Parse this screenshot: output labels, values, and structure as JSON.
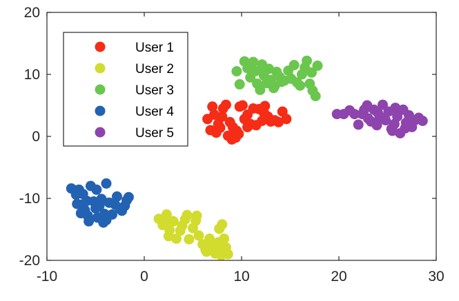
{
  "chart_data": {
    "type": "scatter",
    "title": "",
    "xlabel": "",
    "ylabel": "",
    "xlim": [
      -10,
      30
    ],
    "ylim": [
      -20,
      20
    ],
    "xticks": [
      -10,
      0,
      10,
      20,
      30
    ],
    "yticks": [
      -20,
      -10,
      0,
      10,
      20
    ],
    "xtick_labels": [
      "-10",
      "0",
      "10",
      "20",
      "30"
    ],
    "ytick_labels": [
      "-20",
      "-10",
      "0",
      "10",
      "20"
    ],
    "grid": false,
    "legend_position": "top-left",
    "series": [
      {
        "name": "User 1",
        "color": "#f52c16",
        "points": [
          [
            6.5,
            2.8
          ],
          [
            6.8,
            1.0
          ],
          [
            7.2,
            3.5
          ],
          [
            7.0,
            4.8
          ],
          [
            7.6,
            2.0
          ],
          [
            7.4,
            0.6
          ],
          [
            8.1,
            4.5
          ],
          [
            8.4,
            5.1
          ],
          [
            8.0,
            3.2
          ],
          [
            8.8,
            2.3
          ],
          [
            9.1,
            1.5
          ],
          [
            8.6,
            0.1
          ],
          [
            9.0,
            -0.5
          ],
          [
            9.4,
            -0.2
          ],
          [
            9.7,
            0.4
          ],
          [
            9.8,
            4.8
          ],
          [
            10.1,
            5.0
          ],
          [
            10.3,
            2.8
          ],
          [
            10.6,
            3.5
          ],
          [
            10.9,
            2.0
          ],
          [
            11.2,
            4.5
          ],
          [
            11.5,
            1.8
          ],
          [
            11.8,
            4.4
          ],
          [
            12.1,
            2.5
          ],
          [
            12.4,
            4.9
          ],
          [
            12.7,
            3.2
          ],
          [
            12.3,
            3.8
          ],
          [
            13.0,
            2.4
          ],
          [
            13.4,
            2.6
          ],
          [
            13.8,
            2.3
          ],
          [
            14.2,
            4.0
          ],
          [
            14.6,
            2.8
          ],
          [
            10.6,
            1.5
          ],
          [
            9.5,
            0.9
          ],
          [
            7.8,
            1.4
          ]
        ]
      },
      {
        "name": "User 2",
        "color": "#d1dc2e",
        "points": [
          [
            1.5,
            -13.3
          ],
          [
            1.9,
            -14.3
          ],
          [
            2.3,
            -12.6
          ],
          [
            2.6,
            -15.1
          ],
          [
            3.0,
            -13.7
          ],
          [
            2.5,
            -16.1
          ],
          [
            3.3,
            -16.5
          ],
          [
            3.9,
            -14.4
          ],
          [
            4.2,
            -13.4
          ],
          [
            4.6,
            -16.6
          ],
          [
            4.4,
            -12.7
          ],
          [
            5.0,
            -14.8
          ],
          [
            5.3,
            -13.6
          ],
          [
            5.6,
            -16.0
          ],
          [
            5.4,
            -12.8
          ],
          [
            6.0,
            -17.4
          ],
          [
            6.3,
            -18.3
          ],
          [
            6.7,
            -16.5
          ],
          [
            6.4,
            -18.6
          ],
          [
            7.0,
            -17.6
          ],
          [
            7.3,
            -18.9
          ],
          [
            7.6,
            -17.1
          ],
          [
            7.8,
            -18.6
          ],
          [
            8.0,
            -14.2
          ],
          [
            7.7,
            -14.9
          ],
          [
            8.2,
            -16.5
          ],
          [
            8.4,
            -17.9
          ],
          [
            8.6,
            -19.0
          ],
          [
            7.9,
            -19.2
          ],
          [
            6.9,
            -18.0
          ],
          [
            3.7,
            -15.2
          ],
          [
            2.1,
            -13.8
          ]
        ]
      },
      {
        "name": "User 3",
        "color": "#6bc64d",
        "points": [
          [
            9.5,
            10.5
          ],
          [
            9.8,
            8.4
          ],
          [
            10.3,
            12.1
          ],
          [
            10.6,
            11.0
          ],
          [
            10.9,
            9.5
          ],
          [
            11.2,
            12.0
          ],
          [
            11.4,
            10.5
          ],
          [
            11.6,
            8.5
          ],
          [
            11.9,
            7.5
          ],
          [
            12.1,
            11.6
          ],
          [
            12.3,
            9.8
          ],
          [
            12.6,
            8.6
          ],
          [
            12.8,
            10.9
          ],
          [
            13.0,
            9.1
          ],
          [
            13.3,
            7.8
          ],
          [
            13.6,
            10.4
          ],
          [
            13.9,
            9.6
          ],
          [
            14.1,
            8.8
          ],
          [
            14.4,
            9.0
          ],
          [
            14.8,
            10.6
          ],
          [
            15.1,
            9.3
          ],
          [
            15.4,
            11.5
          ],
          [
            15.7,
            8.7
          ],
          [
            16.0,
            8.2
          ],
          [
            16.2,
            10.0
          ],
          [
            16.5,
            11.1
          ],
          [
            16.7,
            12.2
          ],
          [
            17.0,
            8.5
          ],
          [
            17.3,
            7.4
          ],
          [
            17.6,
            6.5
          ],
          [
            17.2,
            10.3
          ],
          [
            17.8,
            11.4
          ],
          [
            12.0,
            10.8
          ],
          [
            11.0,
            11.5
          ],
          [
            13.4,
            8.1
          ]
        ]
      },
      {
        "name": "User 4",
        "color": "#2362b2",
        "points": [
          [
            -7.5,
            -8.4
          ],
          [
            -7.1,
            -8.7
          ],
          [
            -7.0,
            -9.4
          ],
          [
            -6.7,
            -8.6
          ],
          [
            -6.4,
            -11.0
          ],
          [
            -6.9,
            -10.9
          ],
          [
            -6.1,
            -11.9
          ],
          [
            -5.8,
            -12.8
          ],
          [
            -5.5,
            -8.0
          ],
          [
            -5.2,
            -10.5
          ],
          [
            -5.0,
            -11.6
          ],
          [
            -4.8,
            -13.1
          ],
          [
            -4.6,
            -11.2
          ],
          [
            -4.4,
            -10.1
          ],
          [
            -4.1,
            -12.5
          ],
          [
            -3.9,
            -13.5
          ],
          [
            -3.6,
            -10.7
          ],
          [
            -3.3,
            -12.6
          ],
          [
            -3.0,
            -11.0
          ],
          [
            -2.8,
            -9.7
          ],
          [
            -2.5,
            -11.6
          ],
          [
            -2.3,
            -12.0
          ],
          [
            -2.0,
            -11.2
          ],
          [
            -1.8,
            -10.3
          ],
          [
            -1.6,
            -9.8
          ],
          [
            -3.9,
            -7.6
          ],
          [
            -5.7,
            -13.7
          ],
          [
            -6.3,
            -9.3
          ],
          [
            -4.9,
            -8.6
          ],
          [
            -5.9,
            -10.4
          ],
          [
            -4.2,
            -13.9
          ],
          [
            -6.5,
            -12.4
          ]
        ]
      },
      {
        "name": "User 5",
        "color": "#8e44ad",
        "points": [
          [
            19.8,
            3.6
          ],
          [
            20.5,
            3.6
          ],
          [
            21.1,
            4.2
          ],
          [
            21.6,
            3.6
          ],
          [
            22.0,
            1.9
          ],
          [
            22.4,
            3.6
          ],
          [
            22.9,
            5.0
          ],
          [
            23.3,
            2.4
          ],
          [
            23.6,
            4.3
          ],
          [
            23.9,
            1.8
          ],
          [
            24.2,
            3.1
          ],
          [
            24.5,
            5.1
          ],
          [
            24.8,
            2.6
          ],
          [
            25.1,
            4.0
          ],
          [
            25.4,
            1.2
          ],
          [
            25.7,
            2.0
          ],
          [
            26.0,
            3.2
          ],
          [
            26.3,
            0.5
          ],
          [
            26.6,
            4.3
          ],
          [
            26.9,
            2.2
          ],
          [
            27.2,
            3.4
          ],
          [
            27.5,
            1.5
          ],
          [
            27.8,
            2.6
          ],
          [
            28.2,
            3.0
          ],
          [
            28.6,
            2.5
          ],
          [
            23.0,
            2.9
          ],
          [
            24.0,
            3.8
          ],
          [
            25.5,
            0.9
          ],
          [
            26.8,
            1.3
          ],
          [
            22.6,
            4.3
          ],
          [
            25.8,
            4.6
          ],
          [
            24.6,
            3.0
          ]
        ]
      }
    ]
  }
}
